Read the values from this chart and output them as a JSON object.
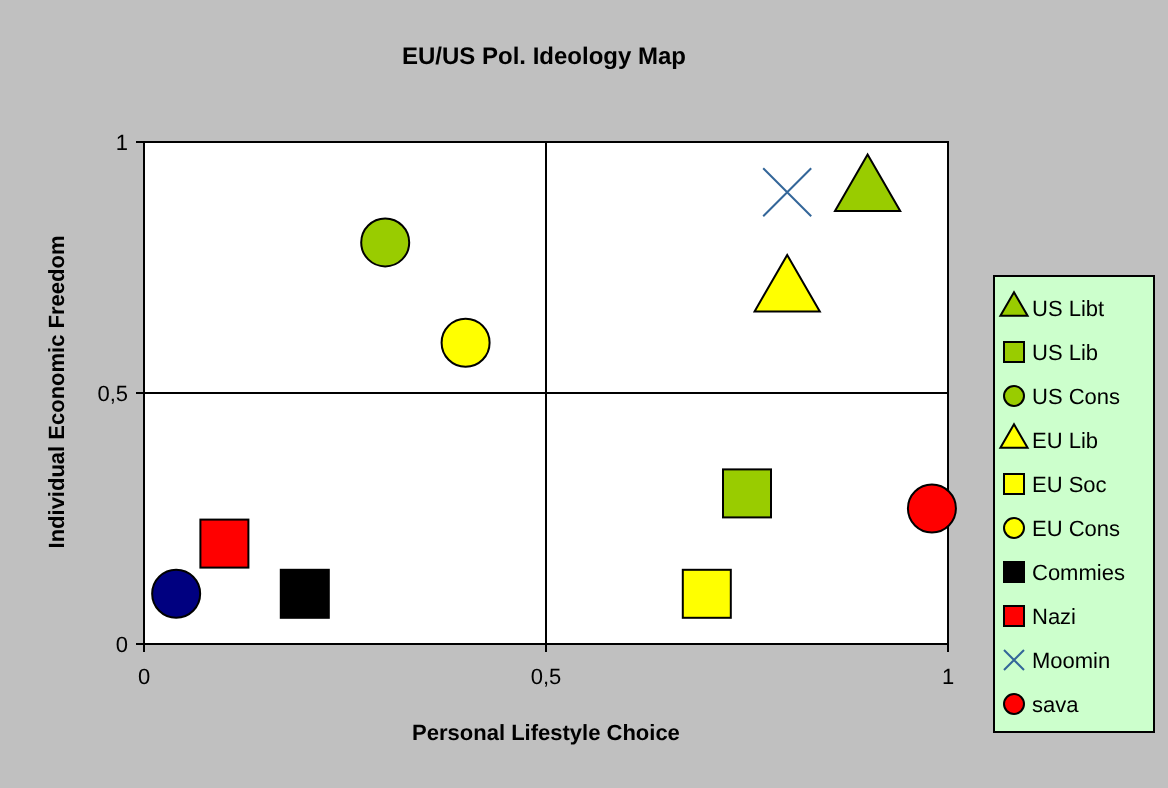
{
  "chart_data": {
    "type": "scatter",
    "title": "EU/US Pol. Ideology Map",
    "xlabel": "Personal Lifestyle Choice",
    "ylabel": "Individual Economic Freedom",
    "xlim": [
      0,
      1
    ],
    "ylim": [
      0,
      1
    ],
    "xticks": [
      0,
      {
        "value": 0.5,
        "label": "0,5"
      },
      1
    ],
    "yticks": [
      0,
      {
        "value": 0.5,
        "label": "0,5"
      },
      1
    ],
    "grid": true,
    "legend": "right",
    "series": [
      {
        "name": "US Libt",
        "color": "#99cc00",
        "marker": "triangle",
        "x": [
          0.9
        ],
        "values": [
          0.9
        ]
      },
      {
        "name": "US Lib",
        "color": "#99cc00",
        "marker": "square",
        "x": [
          0.75
        ],
        "values": [
          0.3
        ]
      },
      {
        "name": "US Cons",
        "color": "#99cc00",
        "marker": "circle",
        "x": [
          0.3
        ],
        "values": [
          0.8
        ]
      },
      {
        "name": "EU Lib",
        "color": "#ffff00",
        "marker": "triangle",
        "x": [
          0.8
        ],
        "values": [
          0.7
        ]
      },
      {
        "name": "EU Soc",
        "color": "#ffff00",
        "marker": "square",
        "x": [
          0.7
        ],
        "values": [
          0.1
        ]
      },
      {
        "name": "EU Cons",
        "color": "#ffff00",
        "marker": "circle",
        "x": [
          0.4
        ],
        "values": [
          0.6
        ]
      },
      {
        "name": "Commies",
        "color": "#000000",
        "marker": "square",
        "x": [
          0.2
        ],
        "values": [
          0.1
        ]
      },
      {
        "name": "Nazi",
        "color": "#ff0000",
        "marker": "square",
        "x": [
          0.1
        ],
        "values": [
          0.2
        ]
      },
      {
        "name": "Moomin",
        "color": "#336699",
        "marker": "cross",
        "x": [
          0.8
        ],
        "values": [
          0.9
        ]
      },
      {
        "name": "sava",
        "color": "#ff0000",
        "marker": "circle",
        "x": [
          0.98
        ],
        "values": [
          0.27
        ]
      },
      {
        "color": "#000080",
        "marker": "circle",
        "x": [
          0.04
        ],
        "values": [
          0.1
        ]
      }
    ]
  }
}
